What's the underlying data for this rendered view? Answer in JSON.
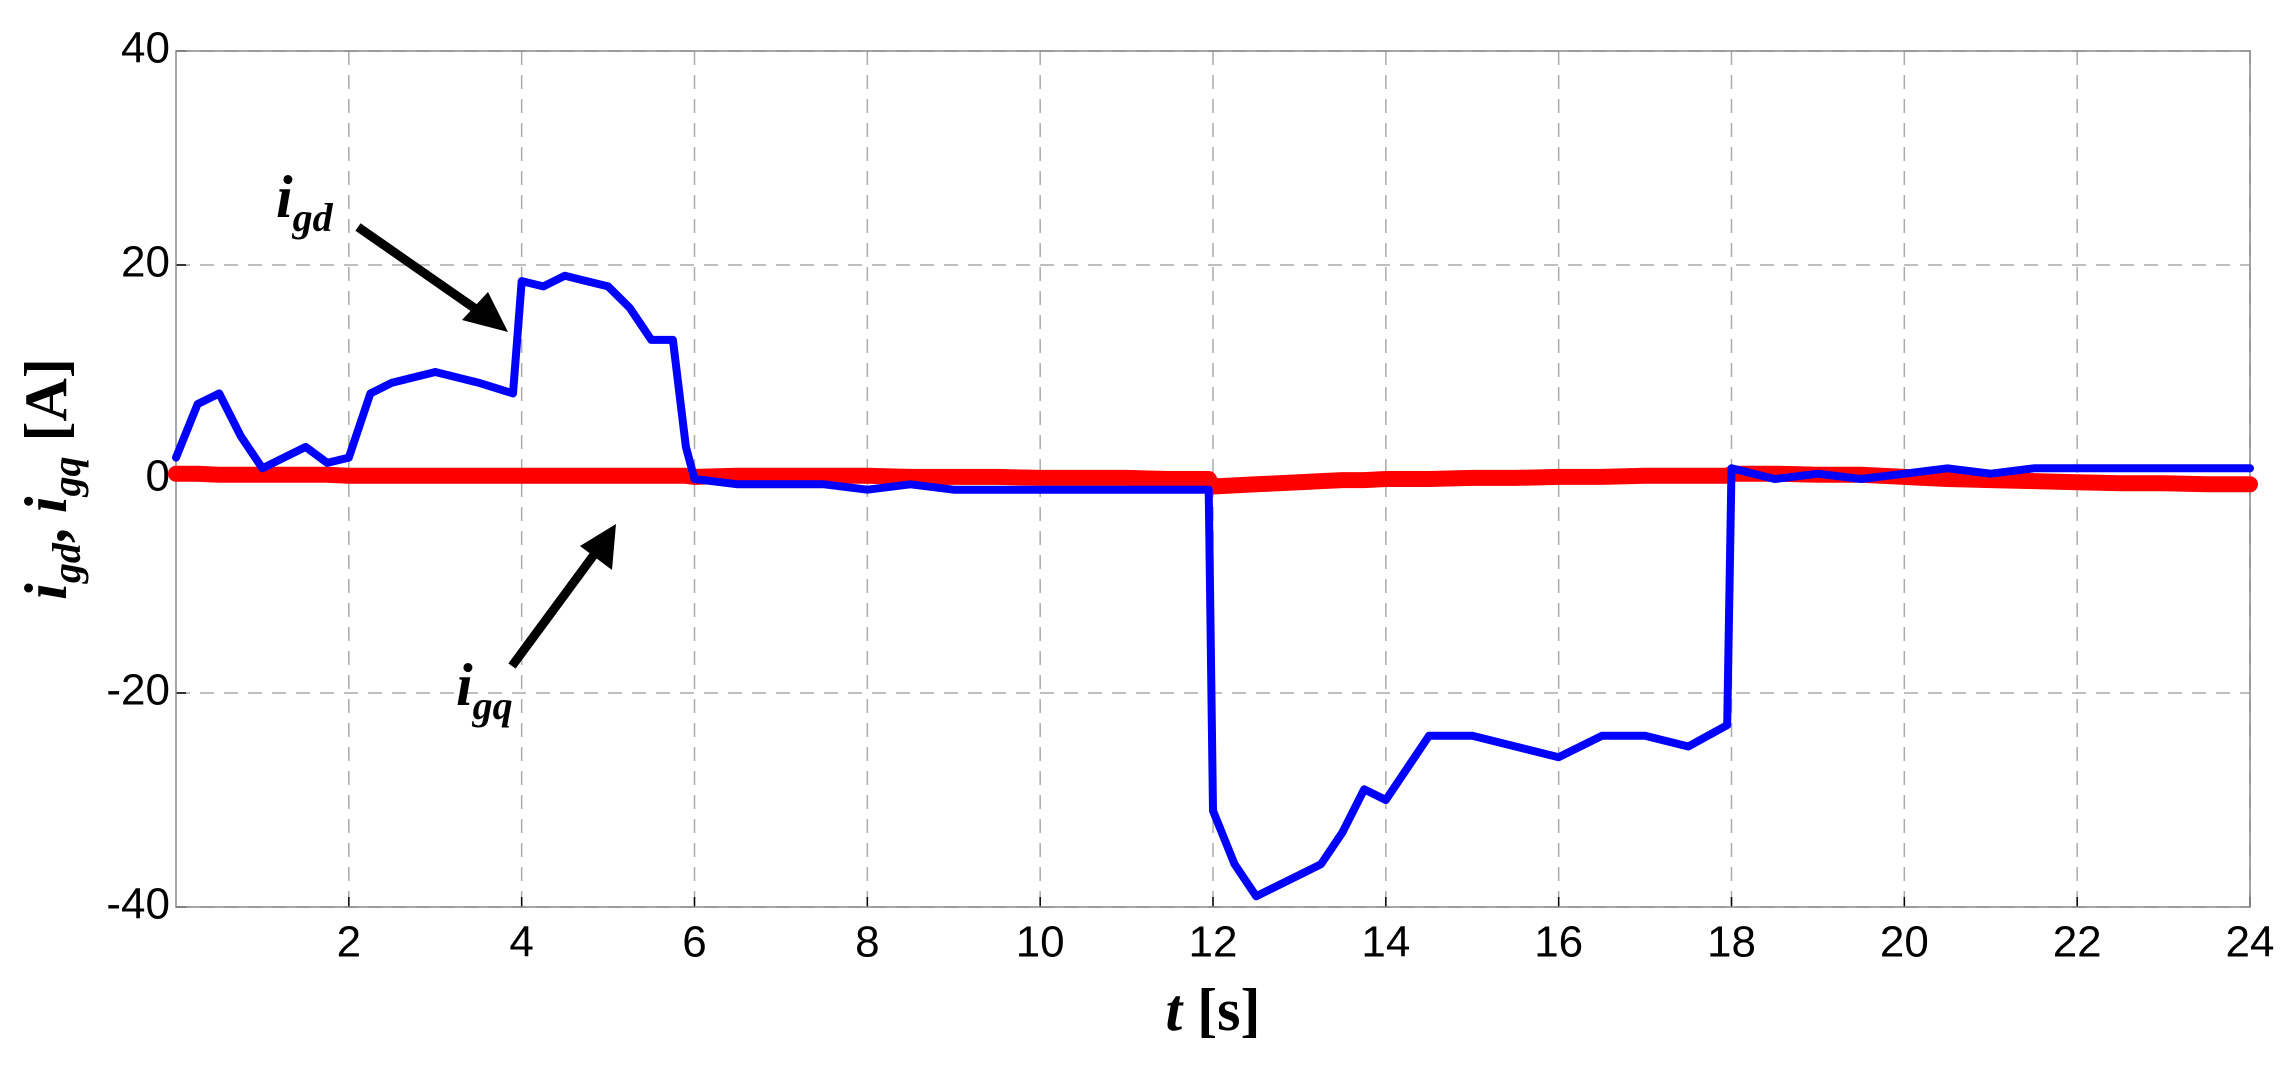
{
  "chart_data": {
    "type": "line",
    "x_label": [
      "t",
      " [s]"
    ],
    "y_label": [
      "i",
      "gd",
      ", ",
      "i",
      "gq",
      " [A]"
    ],
    "annotations": [
      {
        "text": "i",
        "sub": "gd"
      },
      {
        "text": "i",
        "sub": "gq"
      }
    ],
    "x": [
      0,
      0.25,
      0.5,
      0.75,
      1,
      1.25,
      1.5,
      1.75,
      2,
      2.25,
      2.5,
      3,
      3.5,
      3.9,
      4,
      4.25,
      4.5,
      4.75,
      5,
      5.25,
      5.5,
      5.75,
      5.9,
      6,
      6.5,
      7,
      7.5,
      8,
      8.5,
      9,
      9.5,
      10,
      10.5,
      11,
      11.5,
      11.95,
      12,
      12.25,
      12.5,
      13,
      13.25,
      13.5,
      13.75,
      14,
      14.5,
      15,
      15.5,
      16,
      16.5,
      17,
      17.5,
      17.95,
      18,
      18.5,
      19,
      19.5,
      20,
      20.5,
      21,
      21.5,
      22,
      22.5,
      23,
      23.5,
      24
    ],
    "series": [
      {
        "color": "#ff0000",
        "values": [
          0.5,
          0.5,
          0.4,
          0.4,
          0.4,
          0.4,
          0.4,
          0.4,
          0.3,
          0.3,
          0.3,
          0.3,
          0.3,
          0.3,
          0.3,
          0.3,
          0.3,
          0.3,
          0.3,
          0.3,
          0.3,
          0.3,
          0.3,
          0.2,
          0.3,
          0.3,
          0.3,
          0.3,
          0.2,
          0.2,
          0.2,
          0.1,
          0.1,
          0.1,
          0,
          0,
          -0.7,
          -0.6,
          -0.5,
          -0.3,
          -0.2,
          -0.1,
          -0.1,
          0,
          0,
          0.1,
          0.1,
          0.2,
          0.2,
          0.3,
          0.3,
          0.3,
          0.5,
          0.5,
          0.4,
          0.4,
          0.2,
          0,
          -0.1,
          -0.2,
          -0.3,
          -0.4,
          -0.4,
          -0.5,
          -0.5
        ]
      },
      {
        "color": "#0000ff",
        "values": [
          2,
          7,
          8,
          4,
          1,
          2,
          3,
          1.5,
          2,
          8,
          9,
          10,
          9,
          8,
          18.5,
          18,
          19,
          18.5,
          18,
          16,
          13,
          13,
          3,
          0,
          -0.5,
          -0.5,
          -0.5,
          -1,
          -0.5,
          -1,
          -1,
          -1,
          -1,
          -1,
          -1,
          -1,
          -31,
          -36,
          -39,
          -37,
          -36,
          -33,
          -29,
          -30,
          -24,
          -24,
          -25,
          -26,
          -24,
          -24,
          -25,
          -23,
          1,
          0,
          0.5,
          0,
          0.5,
          1,
          0.5,
          1,
          1,
          1,
          1,
          1,
          1
        ]
      }
    ],
    "xlim": [
      0,
      24
    ],
    "xticks": [
      2,
      4,
      6,
      8,
      10,
      12,
      14,
      16,
      18,
      20,
      22,
      24
    ],
    "ylim": [
      -40,
      40
    ],
    "yticks": [
      -40,
      -20,
      0,
      20,
      40
    ],
    "grid": true
  }
}
